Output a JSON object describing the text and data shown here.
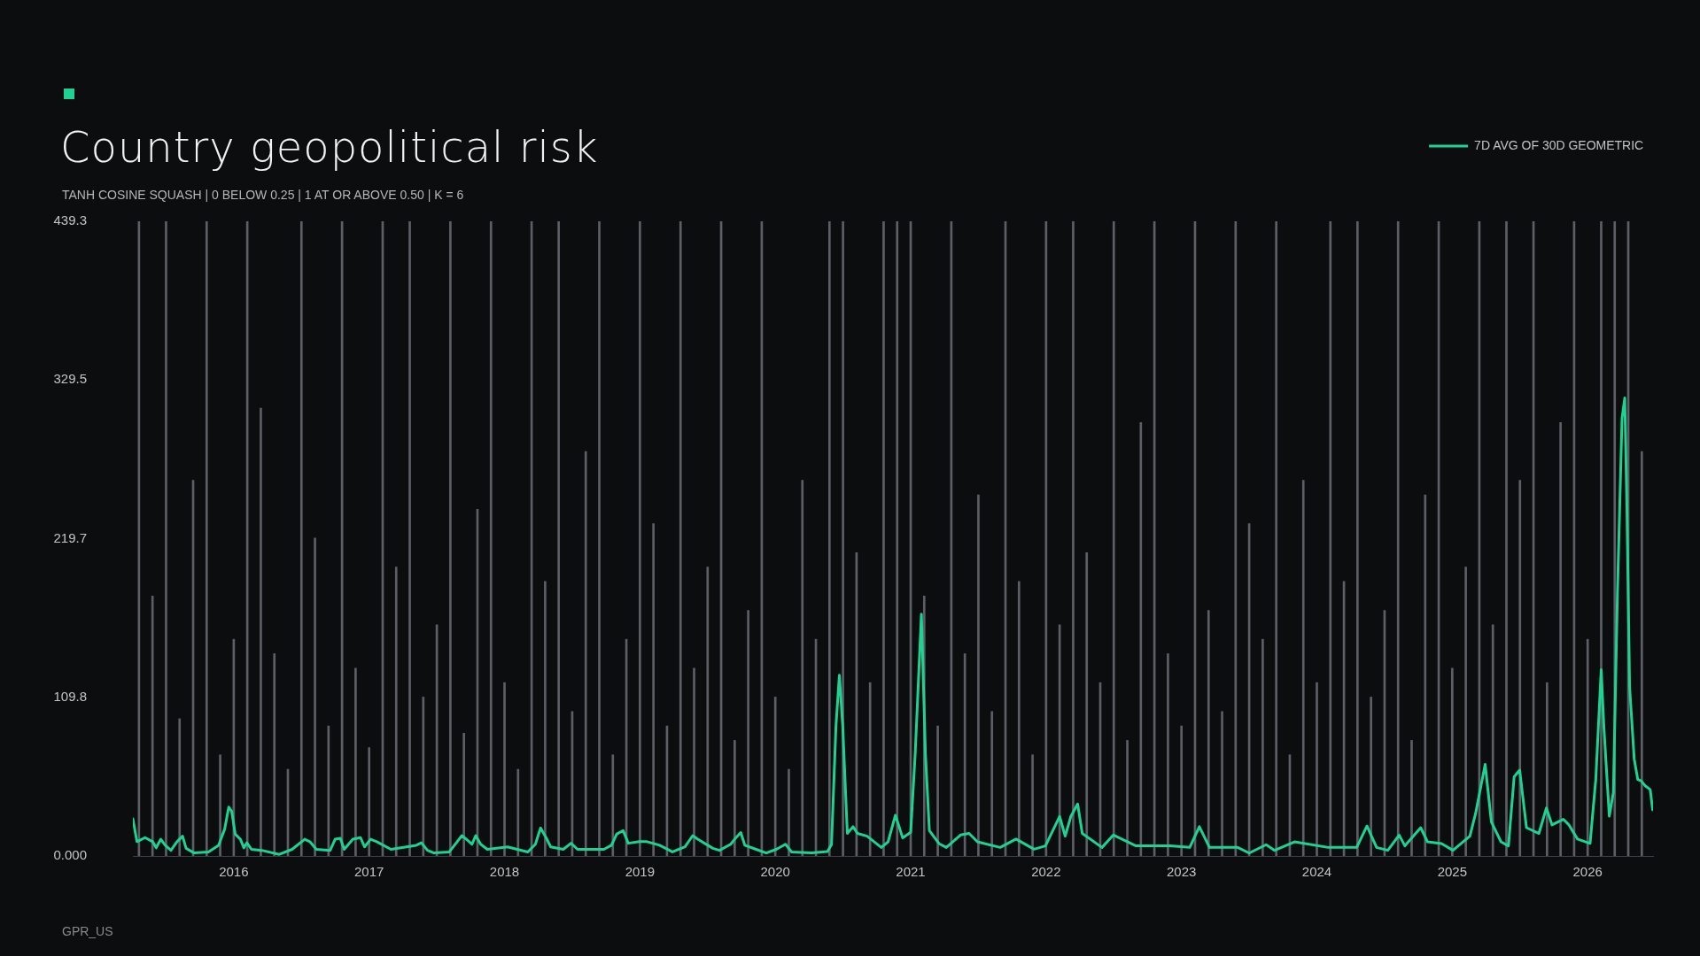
{
  "chart_data": {
    "type": "line",
    "title": "Country geopolitical risk",
    "subtitle": "TANH COSINE SQUASH | 0 BELOW 0.25 | 1 AT OR ABOVE 0.50 | K = 6",
    "annotations": [
      "GPR_US"
    ],
    "xlim": [
      2015.255,
      2026.483
    ],
    "xticks": [
      2016,
      2017,
      2018,
      2019,
      2020,
      2021,
      2022,
      2023,
      2024,
      2025,
      2026
    ],
    "ylim": [
      0,
      439.3
    ],
    "yticks": [
      {
        "value": 0,
        "label": "0.000"
      },
      109.8,
      219.7,
      329.5,
      439.3
    ],
    "grid": false,
    "legend": "top right",
    "marker": "none",
    "series": [
      {
        "type": "bar",
        "color": "#5c6066",
        "x": [
          2015.3,
          2015.4,
          2015.5,
          2015.6,
          2015.7,
          2015.8,
          2015.9,
          2016.0,
          2016.1,
          2016.2,
          2016.3,
          2016.4,
          2016.5,
          2016.6,
          2016.7,
          2016.8,
          2016.9,
          2017.0,
          2017.1,
          2017.2,
          2017.3,
          2017.4,
          2017.5,
          2017.6,
          2017.7,
          2017.8,
          2017.9,
          2018.0,
          2018.1,
          2018.2,
          2018.3,
          2018.4,
          2018.5,
          2018.6,
          2018.7,
          2018.8,
          2018.9,
          2019.0,
          2019.1,
          2019.2,
          2019.3,
          2019.4,
          2019.5,
          2019.6,
          2019.7,
          2019.8,
          2019.9,
          2020.0,
          2020.1,
          2020.2,
          2020.3,
          2020.4,
          2020.5,
          2020.6,
          2020.7,
          2020.8,
          2020.9,
          2021.0,
          2021.1,
          2021.2,
          2021.3,
          2021.4,
          2021.5,
          2021.6,
          2021.7,
          2021.8,
          2021.9,
          2022.0,
          2022.1,
          2022.2,
          2022.3,
          2022.4,
          2022.5,
          2022.6,
          2022.7,
          2022.8,
          2022.9,
          2023.0,
          2023.1,
          2023.2,
          2023.3,
          2023.4,
          2023.5,
          2023.6,
          2023.7,
          2023.8,
          2023.9,
          2024.0,
          2024.1,
          2024.2,
          2024.3,
          2024.4,
          2024.5,
          2024.6,
          2024.7,
          2024.8,
          2024.9,
          2025.0,
          2025.1,
          2025.2,
          2025.3,
          2025.4,
          2025.5,
          2025.6,
          2025.7,
          2025.8,
          2025.9,
          2026.0,
          2026.1,
          2026.2,
          2026.3,
          2026.4
        ],
        "values": [
          439.3,
          180,
          439.3,
          95,
          260,
          439.3,
          70,
          150,
          439.3,
          310,
          140,
          60,
          439.3,
          220,
          90,
          439.3,
          130,
          75,
          439.3,
          200,
          439.3,
          110,
          160,
          439.3,
          85,
          240,
          439.3,
          120,
          60,
          439.3,
          190,
          439.3,
          100,
          280,
          439.3,
          70,
          150,
          439.3,
          230,
          90,
          439.3,
          130,
          200,
          439.3,
          80,
          170,
          439.3,
          110,
          60,
          260,
          150,
          439.3,
          439.3,
          210,
          120,
          439.3,
          439.3,
          439.3,
          180,
          90,
          439.3,
          140,
          250,
          100,
          439.3,
          190,
          70,
          439.3,
          160,
          439.3,
          210,
          120,
          439.3,
          80,
          300,
          439.3,
          140,
          90,
          439.3,
          170,
          100,
          439.3,
          230,
          150,
          439.3,
          70,
          260,
          120,
          439.3,
          190,
          439.3,
          110,
          170,
          439.3,
          80,
          250,
          439.3,
          130,
          200,
          439.3,
          160,
          439.3,
          260,
          439.3,
          120,
          300,
          439.3,
          150,
          439.3,
          439.3,
          439.3,
          280
        ]
      },
      {
        "name": "7D AVG OF 30D GEOMETRIC",
        "color": "#1ed391",
        "x": [
          2015.255,
          2015.285,
          2015.345,
          2015.401,
          2015.427,
          2015.461,
          2015.494,
          2015.536,
          2015.581,
          2015.622,
          2015.648,
          2015.708,
          2015.813,
          2015.888,
          2015.933,
          2015.963,
          2015.985,
          2016.011,
          2016.049,
          2016.075,
          2016.097,
          2016.131,
          2016.206,
          2016.337,
          2016.431,
          2016.524,
          2016.562,
          2016.61,
          2016.712,
          2016.749,
          2016.787,
          2016.816,
          2016.88,
          2016.936,
          2016.966,
          2017.011,
          2017.056,
          2017.161,
          2017.348,
          2017.386,
          2017.431,
          2017.479,
          2017.592,
          2017.685,
          2017.73,
          2017.76,
          2017.787,
          2017.824,
          2017.873,
          2018.022,
          2018.172,
          2018.228,
          2018.266,
          2018.303,
          2018.341,
          2018.434,
          2018.491,
          2018.539,
          2018.734,
          2018.79,
          2018.828,
          2018.876,
          2018.914,
          2018.996,
          2019.052,
          2019.146,
          2019.24,
          2019.333,
          2019.39,
          2019.427,
          2019.539,
          2019.588,
          2019.67,
          2019.7,
          2019.745,
          2019.775,
          2019.858,
          2019.933,
          2020.007,
          2020.075,
          2020.12,
          2020.27,
          2020.385,
          2020.415,
          2020.448,
          2020.473,
          2020.498,
          2020.532,
          2020.574,
          2020.607,
          2020.678,
          2020.783,
          2020.833,
          2020.887,
          2020.941,
          2021.0,
          2021.033,
          2021.079,
          2021.109,
          2021.138,
          2021.209,
          2021.263,
          2021.368,
          2021.431,
          2021.493,
          2021.661,
          2021.778,
          2021.911,
          2021.995,
          2022.1,
          2022.141,
          2022.183,
          2022.233,
          2022.267,
          2022.413,
          2022.497,
          2022.664,
          2022.915,
          2023.061,
          2023.132,
          2023.207,
          2023.416,
          2023.5,
          2023.625,
          2023.688,
          2023.834,
          2024.085,
          2024.294,
          2024.37,
          2024.441,
          2024.524,
          2024.608,
          2024.65,
          2024.767,
          2024.817,
          2024.921,
          2025.005,
          2025.13,
          2025.172,
          2025.243,
          2025.289,
          2025.36,
          2025.415,
          2025.457,
          2025.498,
          2025.548,
          2025.64,
          2025.695,
          2025.737,
          2025.82,
          2025.862,
          2025.925,
          2026.018,
          2026.06,
          2026.1,
          2026.12,
          2026.16,
          2026.19,
          2026.22,
          2026.254,
          2026.274,
          2026.29,
          2026.31,
          2026.344,
          2026.37,
          2026.395,
          2026.425,
          2026.462,
          2026.48
        ],
        "values": [
          25.7,
          9.9,
          12.7,
          9.9,
          5.6,
          11.6,
          7.4,
          3.9,
          9.9,
          13.7,
          5.3,
          2.1,
          2.8,
          7.4,
          18.6,
          33.8,
          31.0,
          15.1,
          11.6,
          5.6,
          9.1,
          4.6,
          3.9,
          1.1,
          4.6,
          11.6,
          9.9,
          4.6,
          3.9,
          11.6,
          12.3,
          4.6,
          11.6,
          12.7,
          6.3,
          11.6,
          9.9,
          4.6,
          7.4,
          9.1,
          3.9,
          2.1,
          2.8,
          14.1,
          10.6,
          8.1,
          14.1,
          8.1,
          4.6,
          6.3,
          2.8,
          8.1,
          19.4,
          13.4,
          6.3,
          4.6,
          8.8,
          4.6,
          4.6,
          7.4,
          15.1,
          17.6,
          8.8,
          9.9,
          9.9,
          7.4,
          2.8,
          6.3,
          14.1,
          11.6,
          5.3,
          3.9,
          8.1,
          11.6,
          16.2,
          7.4,
          4.6,
          2.1,
          4.6,
          8.1,
          2.8,
          2.1,
          3.1,
          7.8,
          90.0,
          125.1,
          90.0,
          15.6,
          20.3,
          15.6,
          13.7,
          5.9,
          9.8,
          28.2,
          12.5,
          16.4,
          70.4,
          167.4,
          70.4,
          17.6,
          8.6,
          5.9,
          14.5,
          15.6,
          9.8,
          5.9,
          11.7,
          4.7,
          7.0,
          27.4,
          13.7,
          27.4,
          36.0,
          15.6,
          5.9,
          14.5,
          7.0,
          7.0,
          5.9,
          20.3,
          5.9,
          5.9,
          2.0,
          7.8,
          3.9,
          9.8,
          5.9,
          5.9,
          20.7,
          5.9,
          3.9,
          14.5,
          7.0,
          19.6,
          9.8,
          8.6,
          3.9,
          13.7,
          29.3,
          63.4,
          23.5,
          9.8,
          7.0,
          54.8,
          59.4,
          19.6,
          15.6,
          33.2,
          21.5,
          25.4,
          21.5,
          11.7,
          8.7,
          53,
          129,
          89,
          27.5,
          44,
          182,
          303,
          317,
          241,
          117,
          67,
          53,
          52,
          48.6,
          46,
          32
        ]
      }
    ]
  }
}
